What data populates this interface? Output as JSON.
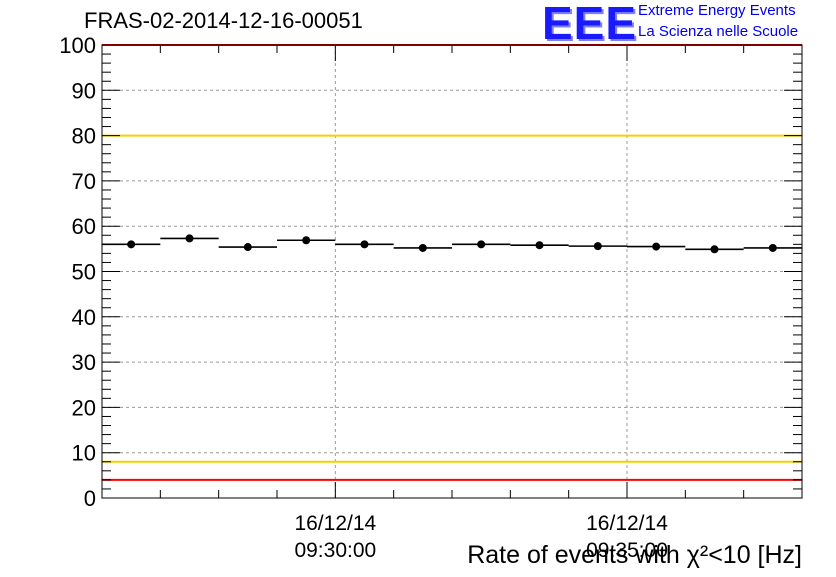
{
  "title": "FRAS-02-2014-12-16-00051",
  "logo": {
    "mark": "EEE",
    "line1": "Extreme Energy Events",
    "line2": "La Scienza nelle Scuole"
  },
  "colors": {
    "red_limit": "#ff0000",
    "yellow_limit": "#f5d000",
    "points": "#000000",
    "grid": "#9a9a9a",
    "logo_blue": "#1a1aff"
  },
  "chart_data": {
    "type": "scatter",
    "title": "FRAS-02-2014-12-16-00051",
    "xlabel": "Rate of events with χ²<10 [Hz]",
    "ylabel": "",
    "ylim": [
      0,
      100
    ],
    "yticks": [
      "0",
      "10",
      "20",
      "30",
      "40",
      "50",
      "60",
      "70",
      "80",
      "90",
      "100"
    ],
    "xticks": [
      {
        "date": "16/12/14",
        "time": "09:30:00"
      },
      {
        "date": "16/12/14",
        "time": "09:35:00"
      }
    ],
    "grid": true,
    "reference_lines": [
      {
        "value": 100,
        "color": "red"
      },
      {
        "value": 80,
        "color": "yellow"
      },
      {
        "value": 8,
        "color": "yellow"
      },
      {
        "value": 4,
        "color": "red"
      }
    ],
    "series": [
      {
        "x": [
          "09:26:30",
          "09:27:30",
          "09:28:30",
          "09:29:30",
          "09:30:30",
          "09:31:30",
          "09:32:30",
          "09:33:30",
          "09:34:30",
          "09:35:30",
          "09:36:30",
          "09:37:30"
        ],
        "values": [
          56.0,
          57.3,
          55.4,
          56.9,
          56.0,
          55.2,
          56.0,
          55.8,
          55.6,
          55.5,
          54.9,
          55.2
        ],
        "errors": [
          0.6,
          0.6,
          0.6,
          0.6,
          0.6,
          0.6,
          0.6,
          0.6,
          0.6,
          0.6,
          0.6,
          0.6
        ]
      }
    ]
  }
}
